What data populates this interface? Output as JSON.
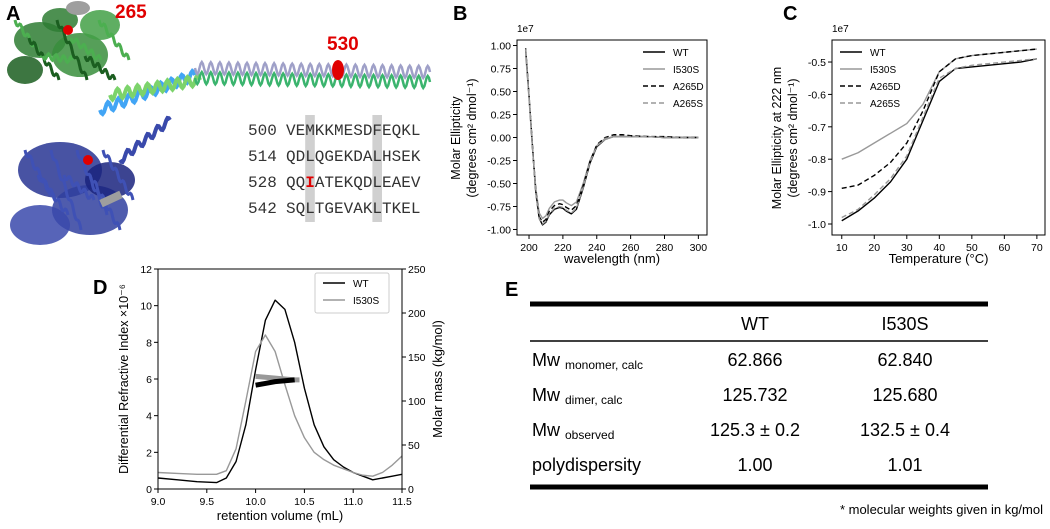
{
  "panel_a": {
    "panel_label": "A",
    "residue_labels": [
      "265",
      "530"
    ],
    "sequence_rows": [
      {
        "number": "500",
        "segments": [
          "VEMKKMESDFEQKL"
        ]
      },
      {
        "number": "514",
        "segments": [
          "QDLQGEKDALHSEK"
        ]
      },
      {
        "number": "528",
        "segments": [
          "QQ",
          "I",
          "ATEKQDLEAEV"
        ]
      },
      {
        "number": "542",
        "segments": [
          "SQLTGEVAKLTKEL"
        ]
      }
    ]
  },
  "chart_data": [
    {
      "type": "line",
      "panel_label": "B",
      "offset_label": "1e7",
      "xlabel": "wavelength (nm)",
      "ylabel": [
        "Molar Ellipticity",
        "(degrees cm² dmol⁻¹)"
      ],
      "x": [
        198,
        200,
        202,
        204,
        206,
        208,
        210,
        212,
        215,
        218,
        220,
        222,
        225,
        228,
        232,
        236,
        240,
        245,
        250,
        255,
        260,
        270,
        280,
        290,
        300
      ],
      "series": [
        {
          "name": "WT",
          "color": "#000000",
          "linestyle": "solid",
          "values": [
            0.95,
            0.45,
            -0.1,
            -0.6,
            -0.88,
            -0.95,
            -0.92,
            -0.84,
            -0.78,
            -0.76,
            -0.77,
            -0.8,
            -0.83,
            -0.78,
            -0.55,
            -0.28,
            -0.1,
            -0.02,
            0.01,
            0.01,
            0.01,
            0.01,
            0.0,
            0.0,
            0.0
          ]
        },
        {
          "name": "I530S",
          "color": "#999999",
          "linestyle": "solid",
          "values": [
            0.92,
            0.42,
            -0.1,
            -0.55,
            -0.82,
            -0.88,
            -0.85,
            -0.77,
            -0.7,
            -0.68,
            -0.68,
            -0.71,
            -0.74,
            -0.7,
            -0.5,
            -0.25,
            -0.09,
            -0.02,
            0.01,
            0.01,
            0.01,
            0.01,
            0.0,
            0.0,
            0.0
          ]
        },
        {
          "name": "A265D",
          "color": "#000000",
          "linestyle": "dashed",
          "values": [
            0.97,
            0.46,
            -0.08,
            -0.58,
            -0.86,
            -0.92,
            -0.89,
            -0.8,
            -0.74,
            -0.72,
            -0.73,
            -0.76,
            -0.79,
            -0.74,
            -0.52,
            -0.26,
            -0.08,
            0.0,
            0.03,
            0.03,
            0.02,
            0.01,
            0.01,
            0.0,
            0.0
          ]
        },
        {
          "name": "A265S",
          "color": "#999999",
          "linestyle": "dashed",
          "values": [
            0.96,
            0.45,
            -0.1,
            -0.6,
            -0.88,
            -0.94,
            -0.91,
            -0.83,
            -0.77,
            -0.75,
            -0.76,
            -0.79,
            -0.82,
            -0.77,
            -0.54,
            -0.27,
            -0.09,
            -0.01,
            0.01,
            0.01,
            0.01,
            0.01,
            0.0,
            0.0,
            0.0
          ]
        }
      ],
      "xlim": [
        192.9,
        305.1
      ],
      "ylim": [
        -1.06,
        1.06
      ],
      "xticks": [
        200,
        220,
        240,
        260,
        280,
        300
      ],
      "yticks": [
        {
          "value": -1,
          "label": "-1.00"
        },
        {
          "value": -0.75,
          "label": "-0.75"
        },
        {
          "value": -0.5,
          "label": "-0.50"
        },
        {
          "value": -0.25,
          "label": "-0.25"
        },
        {
          "value": 0,
          "label": "0.00"
        },
        {
          "value": 0.25,
          "label": "0.25"
        },
        {
          "value": 0.5,
          "label": "0.50"
        },
        {
          "value": 0.75,
          "label": "0.75"
        },
        {
          "value": 1,
          "label": "1.00"
        }
      ],
      "legend": "upper right"
    },
    {
      "type": "line",
      "panel_label": "C",
      "offset_label": "1e7",
      "xlabel": "Temperature (°C)",
      "ylabel": [
        "Molar Ellipticity at 222 nm",
        "(degrees cm² dmol⁻¹)"
      ],
      "x": [
        10,
        15,
        20,
        25,
        30,
        35,
        40,
        45,
        50,
        55,
        60,
        65,
        70
      ],
      "series": [
        {
          "name": "WT",
          "color": "#000000",
          "linestyle": "solid",
          "values": [
            -0.99,
            -0.96,
            -0.92,
            -0.87,
            -0.8,
            -0.68,
            -0.56,
            -0.52,
            -0.515,
            -0.51,
            -0.505,
            -0.5,
            -0.49
          ]
        },
        {
          "name": "I530S",
          "color": "#999999",
          "linestyle": "solid",
          "values": [
            -0.8,
            -0.78,
            -0.75,
            -0.72,
            -0.69,
            -0.63,
            -0.53,
            -0.49,
            -0.48,
            -0.475,
            -0.47,
            -0.465,
            -0.46
          ]
        },
        {
          "name": "A265D",
          "color": "#000000",
          "linestyle": "dashed",
          "values": [
            -0.89,
            -0.88,
            -0.85,
            -0.81,
            -0.75,
            -0.65,
            -0.53,
            -0.49,
            -0.48,
            -0.475,
            -0.47,
            -0.465,
            -0.46
          ]
        },
        {
          "name": "A265S",
          "color": "#999999",
          "linestyle": "dashed",
          "values": [
            -0.98,
            -0.955,
            -0.91,
            -0.86,
            -0.79,
            -0.67,
            -0.55,
            -0.52,
            -0.51,
            -0.505,
            -0.5,
            -0.495,
            -0.49
          ]
        }
      ],
      "xlim": [
        7,
        72.5
      ],
      "ylim": [
        -1.034,
        -0.432
      ],
      "xticks": [
        10,
        20,
        30,
        40,
        50,
        60,
        70
      ],
      "yticks": [
        {
          "value": -1,
          "label": "-1.0"
        },
        -0.9,
        -0.8,
        -0.7,
        -0.6,
        -0.5
      ],
      "legend": "upper left"
    },
    {
      "type": "line",
      "panel_label": "D",
      "xlabel": "retention volume (mL)",
      "ylabel": "Differential Refractive Index ×10⁻⁶",
      "y2label": "Molar mass (kg/mol)",
      "x": [
        9.0,
        9.2,
        9.4,
        9.6,
        9.7,
        9.8,
        9.9,
        10.0,
        10.1,
        10.2,
        10.3,
        10.4,
        10.5,
        10.6,
        10.7,
        10.8,
        10.9,
        11.0,
        11.1,
        11.2,
        11.3,
        11.4,
        11.5
      ],
      "series": [
        {
          "name": "WT",
          "color": "#000000",
          "linestyle": "solid",
          "values": [
            0.6,
            0.5,
            0.4,
            0.35,
            0.6,
            1.5,
            3.5,
            6.5,
            9.2,
            10.3,
            9.8,
            8.0,
            5.5,
            3.5,
            2.3,
            1.6,
            1.2,
            0.9,
            0.7,
            0.5,
            0.6,
            0.7,
            0.8
          ]
        },
        {
          "name": "I530S",
          "color": "#999999",
          "linestyle": "solid",
          "values": [
            0.9,
            0.85,
            0.8,
            0.8,
            1.0,
            2.2,
            4.8,
            7.5,
            8.4,
            7.5,
            5.7,
            4.0,
            2.8,
            2.0,
            1.6,
            1.3,
            1.1,
            0.9,
            0.75,
            0.7,
            0.9,
            1.3,
            1.8
          ]
        },
        {
          "color": "#999999",
          "linestyle": "thick",
          "axis": "y2",
          "x": [
            10.0,
            10.1,
            10.2,
            10.3,
            10.4,
            10.45
          ],
          "values": [
            128,
            127,
            126,
            125,
            124,
            124
          ]
        },
        {
          "color": "#000000",
          "linestyle": "thick",
          "axis": "y2",
          "x": [
            10.0,
            10.1,
            10.2,
            10.3,
            10.4
          ],
          "values": [
            118,
            120,
            122,
            123,
            124
          ]
        }
      ],
      "xlim": [
        9.0,
        11.5
      ],
      "ylim": [
        0,
        12
      ],
      "y2lim": [
        0,
        250
      ],
      "xticks": [
        {
          "value": 9,
          "label": "9.0"
        },
        9.5,
        {
          "value": 10,
          "label": "10.0"
        },
        10.5,
        {
          "value": 11,
          "label": "11.0"
        },
        11.5
      ],
      "yticks": [
        0,
        2,
        4,
        6,
        8,
        10,
        12
      ],
      "y2ticks": [
        0,
        50,
        100,
        150,
        200,
        250
      ],
      "legend": "upper right"
    }
  ],
  "table": {
    "panel_label": "E",
    "columns": [
      "WT",
      "I530S"
    ],
    "rows": [
      {
        "label": "Mw",
        "sub": "monomer, calc",
        "values": [
          "62.866",
          "62.840"
        ]
      },
      {
        "label": "Mw",
        "sub": "dimer, calc",
        "values": [
          "125.732",
          "125.680"
        ]
      },
      {
        "label": "Mw",
        "sub": "observed",
        "values": [
          "125.3 ± 0.2",
          "132.5 ± 0.4"
        ]
      },
      {
        "label": "polydispersity",
        "values": [
          "1.00",
          "1.01"
        ]
      }
    ],
    "footnote": "* molecular weights given in kg/mol"
  }
}
